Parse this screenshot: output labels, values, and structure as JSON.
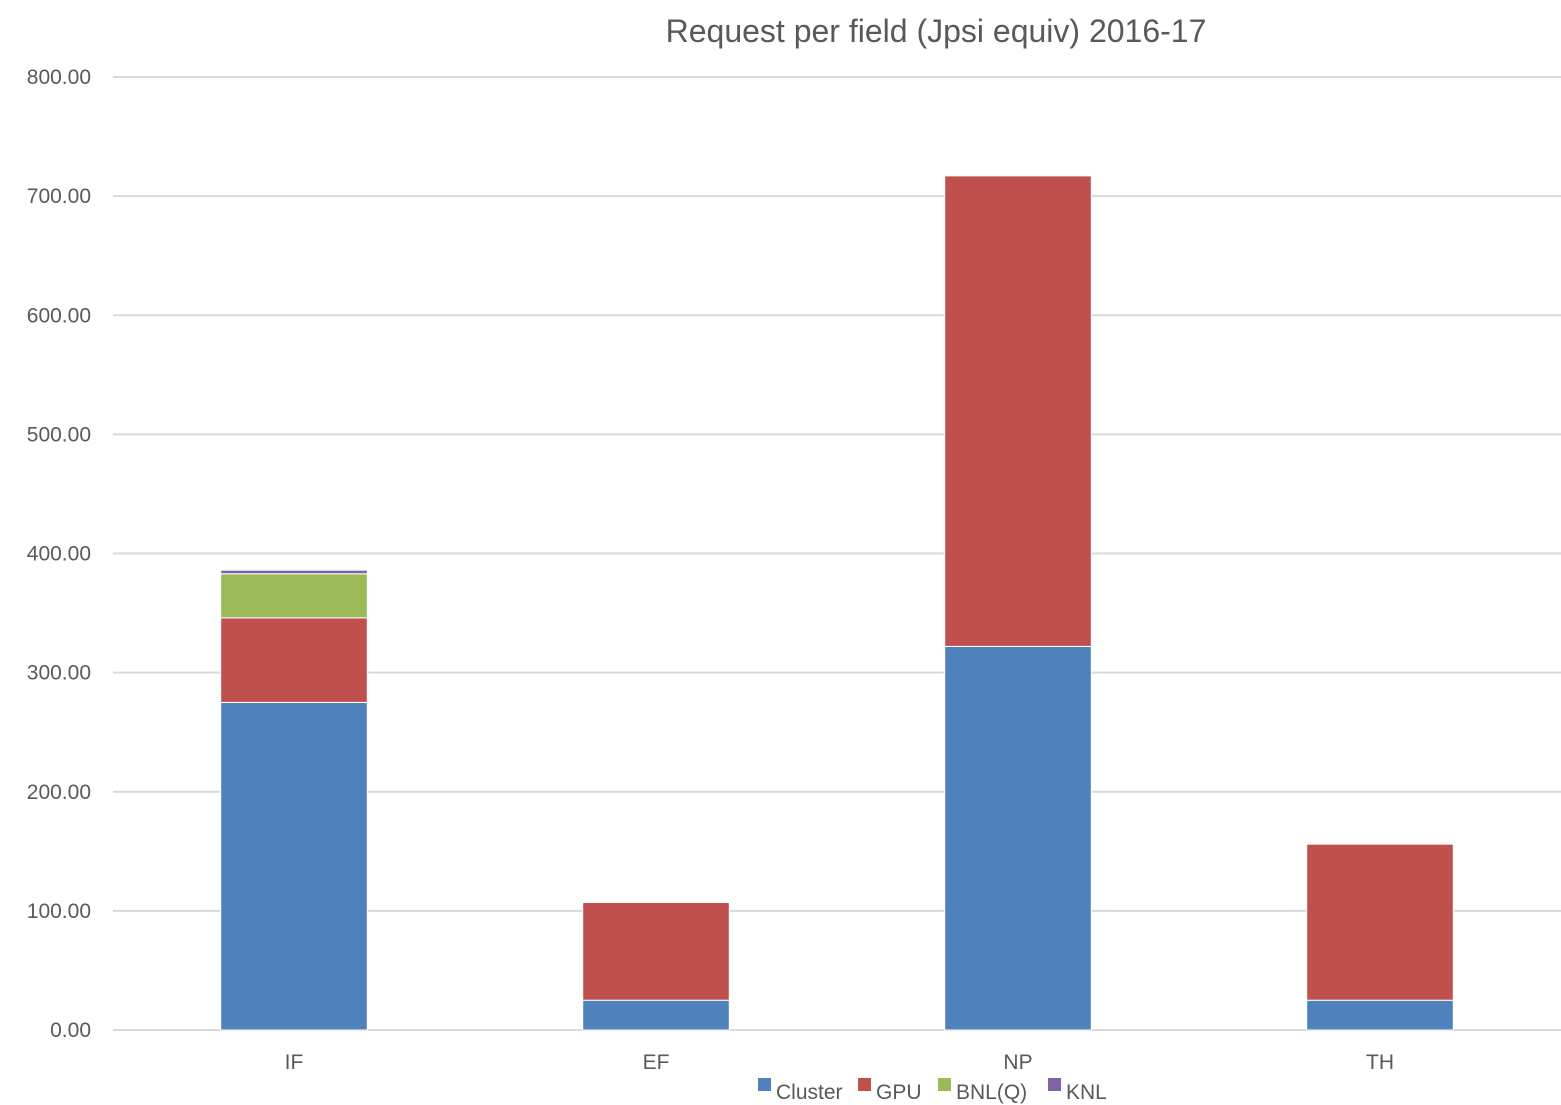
{
  "chart_data": {
    "type": "bar",
    "stacked": true,
    "title": "Request per field (Jpsi  equiv) 2016-17",
    "xlabel": "",
    "ylabel": "",
    "categories": [
      "IF",
      "EF",
      "NP",
      "TH"
    ],
    "series": [
      {
        "name": "Cluster",
        "color": "#4f81bd",
        "values": [
          275,
          25,
          322,
          25
        ]
      },
      {
        "name": "GPU",
        "color": "#c0504d",
        "values": [
          71,
          82,
          395,
          131
        ]
      },
      {
        "name": "BNL(Q)",
        "color": "#9bbb59",
        "values": [
          37,
          0,
          0,
          0
        ]
      },
      {
        "name": "KNL",
        "color": "#8064a2",
        "values": [
          3,
          0,
          0,
          0
        ]
      }
    ],
    "ylim": [
      0,
      800
    ],
    "yticks": [
      0,
      100,
      200,
      300,
      400,
      500,
      600,
      700,
      800
    ],
    "ytick_labels": [
      "0.00",
      "100.00",
      "200.00",
      "300.00",
      "400.00",
      "500.00",
      "600.00",
      "700.00",
      "800.00"
    ],
    "grid": true,
    "legend_position": "bottom"
  }
}
